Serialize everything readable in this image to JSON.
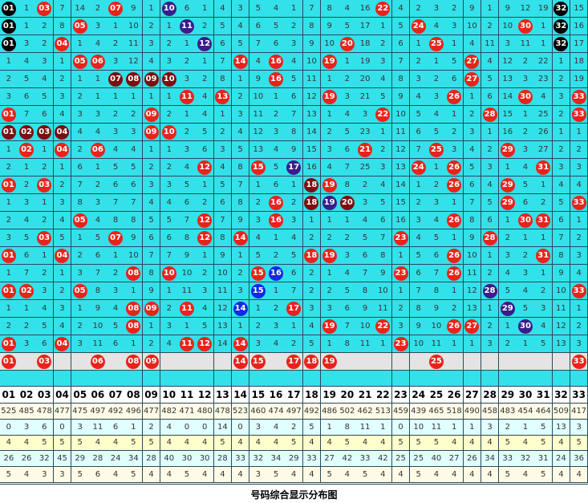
{
  "grid": {
    "rows": [
      [
        "01",
        1,
        "03",
        7,
        14,
        2,
        "07",
        9,
        1,
        "10",
        6,
        1,
        4,
        3,
        5,
        4,
        1,
        7,
        8,
        4,
        16,
        "22",
        4,
        2,
        3,
        2,
        9,
        1,
        9,
        12,
        19,
        "32",
        15
      ],
      [
        "01",
        1,
        2,
        8,
        "05",
        3,
        1,
        10,
        2,
        1,
        "11",
        2,
        5,
        4,
        6,
        5,
        2,
        8,
        9,
        5,
        17,
        1,
        5,
        "24",
        4,
        3,
        10,
        2,
        10,
        "30",
        1,
        "32",
        16
      ],
      [
        "01",
        3,
        2,
        "04",
        1,
        4,
        2,
        11,
        3,
        2,
        1,
        "12",
        6,
        5,
        7,
        6,
        3,
        9,
        10,
        "20",
        18,
        2,
        6,
        1,
        "25",
        1,
        4,
        11,
        3,
        11,
        1,
        "32",
        17
      ],
      [
        1,
        4,
        3,
        1,
        "05",
        "06",
        3,
        12,
        4,
        3,
        2,
        1,
        7,
        "14",
        4,
        "16",
        4,
        10,
        "19",
        1,
        19,
        3,
        7,
        2,
        1,
        5,
        "27",
        4,
        12,
        2,
        22,
        1,
        18
      ],
      [
        2,
        5,
        4,
        2,
        1,
        1,
        "07",
        "08",
        "09",
        "10",
        3,
        2,
        8,
        1,
        9,
        "16",
        5,
        11,
        1,
        2,
        20,
        4,
        8,
        3,
        2,
        6,
        "27",
        5,
        13,
        3,
        23,
        2,
        19
      ],
      [
        3,
        6,
        5,
        3,
        2,
        1,
        1,
        1,
        1,
        1,
        "11",
        4,
        "13",
        2,
        10,
        1,
        6,
        12,
        "19",
        3,
        21,
        5,
        9,
        4,
        3,
        "26",
        1,
        6,
        14,
        "30",
        4,
        3,
        "33"
      ],
      [
        "01",
        7,
        6,
        4,
        3,
        3,
        2,
        2,
        "09",
        2,
        1,
        4,
        1,
        3,
        11,
        2,
        7,
        13,
        1,
        4,
        3,
        "22",
        10,
        5,
        4,
        1,
        2,
        "28",
        15,
        1,
        25,
        2,
        "33"
      ],
      [
        "01",
        "02",
        "03",
        "04",
        4,
        4,
        3,
        3,
        "09",
        "10",
        2,
        5,
        2,
        4,
        12,
        3,
        8,
        14,
        2,
        5,
        23,
        1,
        11,
        6,
        5,
        2,
        3,
        1,
        16,
        2,
        26,
        1,
        1
      ],
      [
        1,
        "02",
        1,
        "04",
        2,
        "06",
        4,
        4,
        1,
        1,
        3,
        6,
        3,
        5,
        13,
        4,
        9,
        15,
        3,
        6,
        "21",
        2,
        12,
        7,
        "25",
        3,
        4,
        2,
        "29",
        3,
        27,
        2,
        2
      ],
      [
        2,
        1,
        2,
        1,
        6,
        1,
        5,
        5,
        2,
        2,
        4,
        "12",
        4,
        8,
        "15",
        5,
        "17",
        16,
        4,
        7,
        25,
        3,
        13,
        "24",
        1,
        "26",
        5,
        3,
        1,
        4,
        "31",
        3,
        3
      ],
      [
        "01",
        2,
        "03",
        2,
        7,
        2,
        6,
        6,
        3,
        3,
        5,
        1,
        5,
        7,
        1,
        6,
        1,
        "18",
        "19",
        8,
        2,
        4,
        14,
        1,
        2,
        "26",
        6,
        4,
        "29",
        5,
        1,
        4,
        4
      ],
      [
        1,
        3,
        1,
        3,
        8,
        3,
        7,
        7,
        4,
        4,
        6,
        2,
        6,
        8,
        2,
        "16",
        2,
        "18",
        "19",
        "20",
        3,
        5,
        15,
        2,
        3,
        1,
        7,
        5,
        "29",
        6,
        2,
        5,
        "33"
      ],
      [
        2,
        4,
        2,
        4,
        "05",
        4,
        8,
        8,
        5,
        5,
        7,
        "12",
        7,
        9,
        3,
        "16",
        3,
        1,
        1,
        1,
        4,
        6,
        16,
        3,
        4,
        "26",
        8,
        6,
        1,
        "30",
        "31",
        6,
        1
      ],
      [
        3,
        5,
        "03",
        5,
        1,
        5,
        "07",
        9,
        6,
        6,
        8,
        "12",
        8,
        "14",
        4,
        1,
        4,
        2,
        2,
        2,
        5,
        7,
        "23",
        4,
        5,
        1,
        9,
        "28",
        2,
        1,
        1,
        7,
        2
      ],
      [
        "01",
        6,
        1,
        "04",
        2,
        6,
        1,
        10,
        7,
        7,
        9,
        1,
        9,
        1,
        5,
        2,
        5,
        "18",
        "19",
        3,
        6,
        8,
        1,
        5,
        6,
        "26",
        10,
        1,
        3,
        2,
        "31",
        8,
        3
      ],
      [
        1,
        7,
        2,
        1,
        3,
        7,
        2,
        "08",
        8,
        "10",
        10,
        2,
        10,
        2,
        "15",
        "16",
        6,
        2,
        1,
        4,
        7,
        9,
        "23",
        6,
        7,
        "26",
        11,
        2,
        4,
        3,
        1,
        9,
        4
      ],
      [
        "01",
        "02",
        3,
        2,
        "05",
        8,
        3,
        1,
        9,
        1,
        11,
        3,
        11,
        3,
        "15",
        1,
        7,
        2,
        2,
        5,
        8,
        10,
        1,
        7,
        8,
        1,
        12,
        "28",
        5,
        4,
        2,
        10,
        "33"
      ],
      [
        1,
        1,
        4,
        3,
        1,
        9,
        4,
        "08",
        "09",
        2,
        "11",
        4,
        12,
        "14",
        1,
        2,
        "17",
        3,
        3,
        6,
        9,
        11,
        2,
        8,
        9,
        2,
        13,
        1,
        "29",
        5,
        3,
        11,
        1
      ],
      [
        2,
        2,
        5,
        4,
        2,
        10,
        5,
        "08",
        1,
        3,
        1,
        5,
        13,
        1,
        2,
        3,
        1,
        4,
        "19",
        7,
        10,
        "22",
        3,
        9,
        10,
        "26",
        "27",
        2,
        1,
        "30",
        4,
        12,
        2
      ],
      [
        "01",
        3,
        6,
        "04",
        3,
        11,
        6,
        1,
        2,
        4,
        "11",
        "12",
        14,
        "14",
        3,
        4,
        2,
        5,
        1,
        8,
        11,
        1,
        "23",
        10,
        11,
        1,
        1,
        3,
        2,
        1,
        5,
        13,
        3
      ],
      [
        "01",
        null,
        "03",
        null,
        null,
        "06",
        null,
        "08",
        "09",
        null,
        null,
        null,
        null,
        "14",
        "15",
        null,
        "17",
        "18",
        "19",
        null,
        null,
        null,
        null,
        null,
        "25",
        null,
        null,
        null,
        null,
        null,
        null,
        null,
        "33"
      ]
    ],
    "ball_color": "#e8231a",
    "ball_color_overrides": {
      "0.0": "#000000",
      "1.0": "#000000",
      "2.0": "#000000",
      "0.31": "#000000",
      "1.31": "#000000",
      "2.31": "#000000",
      "0.9": "#3a1d8a",
      "1.10": "#3a1d8a",
      "2.11": "#3a1d8a",
      "9.16": "#3a1d8a",
      "11.18": "#3a1d8a",
      "16.27": "#3a1d8a",
      "17.28": "#3a1d8a",
      "18.29": "#3a1d8a",
      "15.15": "#1428e6",
      "16.14": "#1428e6",
      "17.13": "#1428e6",
      "4.6": "#7b0f0f",
      "4.7": "#7b0f0f",
      "4.8": "#7b0f0f",
      "4.9": "#7b0f0f",
      "7.0": "#7b0f0f",
      "7.1": "#7b0f0f",
      "7.2": "#7b0f0f",
      "7.3": "#7b0f0f",
      "10.17": "#7b0f0f",
      "11.17": "#7b0f0f",
      "11.19": "#7b0f0f"
    }
  },
  "header": [
    "01",
    "02",
    "03",
    "04",
    "05",
    "06",
    "07",
    "08",
    "09",
    "10",
    "11",
    "12",
    "13",
    "14",
    "15",
    "16",
    "17",
    "18",
    "19",
    "20",
    "21",
    "22",
    "23",
    "24",
    "25",
    "26",
    "27",
    "28",
    "29",
    "30",
    "31",
    "32",
    "33"
  ],
  "stats": [
    [
      525,
      485,
      478,
      477,
      475,
      497,
      492,
      496,
      477,
      482,
      471,
      480,
      478,
      523,
      460,
      474,
      497,
      492,
      486,
      502,
      462,
      513,
      459,
      439,
      465,
      518,
      490,
      458,
      483,
      454,
      464,
      509,
      417
    ],
    [
      0,
      3,
      6,
      0,
      3,
      11,
      6,
      1,
      2,
      4,
      0,
      0,
      14,
      0,
      3,
      4,
      2,
      5,
      1,
      8,
      11,
      1,
      0,
      10,
      11,
      1,
      1,
      3,
      2,
      1,
      5,
      13,
      3
    ],
    [
      4,
      4,
      5,
      5,
      5,
      4,
      4,
      5,
      5,
      4,
      4,
      4,
      5,
      4,
      4,
      4,
      5,
      4,
      4,
      5,
      4,
      4,
      5,
      5,
      5,
      4,
      4,
      4,
      5,
      4,
      5,
      4,
      5
    ],
    [
      26,
      26,
      32,
      45,
      29,
      28,
      24,
      34,
      28,
      40,
      30,
      30,
      28,
      33,
      32,
      34,
      29,
      33,
      27,
      42,
      33,
      42,
      25,
      25,
      40,
      27,
      26,
      34,
      33,
      32,
      31,
      24,
      36
    ],
    [
      5,
      4,
      3,
      3,
      5,
      6,
      4,
      5,
      4,
      4,
      5,
      4,
      4,
      4,
      3,
      5,
      4,
      4,
      5,
      4,
      5,
      4,
      4,
      5,
      4,
      4,
      4,
      4,
      5,
      4,
      5,
      4,
      4
    ]
  ],
  "footer": "号码综合显示分布图"
}
